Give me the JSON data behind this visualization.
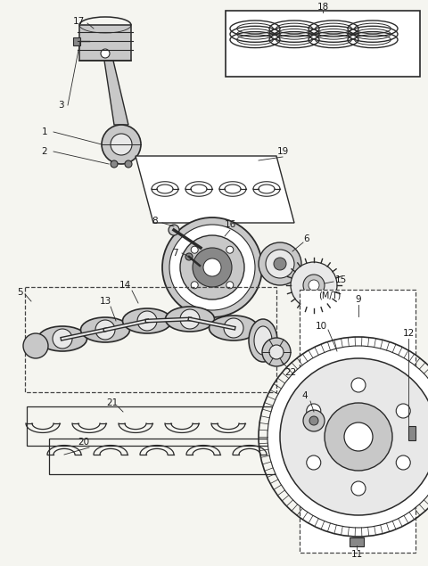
{
  "bg_color": "#f5f5f0",
  "line_color": "#2a2a2a",
  "gray_fill": "#c8c8c8",
  "dark_fill": "#888888",
  "light_fill": "#e8e8e8",
  "dashed_color": "#444444",
  "font_size": 7.5
}
